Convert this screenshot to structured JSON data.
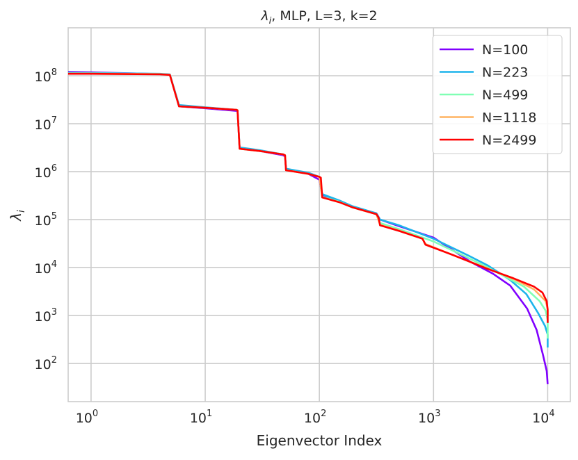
{
  "chart_data": {
    "type": "line",
    "title": "λ_i, MLP, L=3, k=2",
    "title_parts": {
      "symbol": "λ",
      "sub": "i",
      "rest": ", MLP, L=3, k=2"
    },
    "xlabel": "Eigenvector Index",
    "ylabel": "λ_i",
    "ylabel_parts": {
      "symbol": "λ",
      "sub": "i"
    },
    "xscale": "log",
    "yscale": "log",
    "xlim": [
      0.63,
      15800
    ],
    "ylim": [
      16,
      1000000000
    ],
    "grid": true,
    "legend_position": "top-right",
    "x_ticks": [
      {
        "base": "10",
        "exp": "0",
        "value": 1
      },
      {
        "base": "10",
        "exp": "1",
        "value": 10
      },
      {
        "base": "10",
        "exp": "2",
        "value": 100
      },
      {
        "base": "10",
        "exp": "3",
        "value": 1000
      },
      {
        "base": "10",
        "exp": "4",
        "value": 10000
      }
    ],
    "y_ticks": [
      {
        "base": "10",
        "exp": "2",
        "value": 100
      },
      {
        "base": "10",
        "exp": "3",
        "value": 1000
      },
      {
        "base": "10",
        "exp": "4",
        "value": 10000
      },
      {
        "base": "10",
        "exp": "5",
        "value": 100000
      },
      {
        "base": "10",
        "exp": "6",
        "value": 1000000
      },
      {
        "base": "10",
        "exp": "7",
        "value": 10000000
      },
      {
        "base": "10",
        "exp": "8",
        "value": 100000000
      }
    ],
    "series": [
      {
        "name": "N=100",
        "color": "#8000ff",
        "points": [
          [
            0.63,
            120000000.0
          ],
          [
            1,
            118000000.0
          ],
          [
            4,
            108000000.0
          ],
          [
            4.9,
            105000000.0
          ],
          [
            5.9,
            23000000.0
          ],
          [
            10,
            21000000.0
          ],
          [
            18.8,
            18500000.0
          ],
          [
            19.2,
            18500000.0
          ],
          [
            20,
            3100000.0
          ],
          [
            30,
            2700000.0
          ],
          [
            48,
            2200000.0
          ],
          [
            50,
            2100000.0
          ],
          [
            51,
            1120000.0
          ],
          [
            80,
            900000.0
          ],
          [
            100,
            680000.0
          ],
          [
            106,
            330000.0
          ],
          [
            150,
            240000.0
          ],
          [
            195,
            180000.0
          ],
          [
            316,
            135000.0
          ],
          [
            340,
            100000.0
          ],
          [
            500,
            73000.0
          ],
          [
            1000,
            42000.0
          ],
          [
            2130,
            13000.0
          ],
          [
            3300,
            7500.0
          ],
          [
            4700,
            4200.0
          ],
          [
            6600,
            1400.0
          ],
          [
            8000,
            500
          ],
          [
            9100,
            150
          ],
          [
            9800,
            70
          ],
          [
            10000,
            37
          ]
        ]
      },
      {
        "name": "N=223",
        "color": "#1cb4eb",
        "points": [
          [
            0.63,
            115000000.0
          ],
          [
            1,
            114000000.0
          ],
          [
            4,
            110000000.0
          ],
          [
            4.9,
            107000000.0
          ],
          [
            5.9,
            24500000.0
          ],
          [
            10,
            22000000.0
          ],
          [
            18.8,
            19500000.0
          ],
          [
            19.2,
            19000000.0
          ],
          [
            20,
            3200000.0
          ],
          [
            30,
            2800000.0
          ],
          [
            48,
            2300000.0
          ],
          [
            50,
            2200000.0
          ],
          [
            51,
            1150000.0
          ],
          [
            80,
            950000.0
          ],
          [
            100,
            780000.0
          ],
          [
            106,
            340000.0
          ],
          [
            150,
            250000.0
          ],
          [
            195,
            190000.0
          ],
          [
            316,
            135000.0
          ],
          [
            340,
            100000.0
          ],
          [
            500,
            76000.0
          ],
          [
            1000,
            40000.0
          ],
          [
            2000,
            18000.0
          ],
          [
            3000,
            11000.0
          ],
          [
            4700,
            5500.0
          ],
          [
            6500,
            2800.0
          ],
          [
            8200,
            1150.0
          ],
          [
            9500,
            600
          ],
          [
            10000,
            400
          ],
          [
            10000,
            215
          ]
        ]
      },
      {
        "name": "N=499",
        "color": "#80ffb4",
        "points": [
          [
            0.63,
            112000000.0
          ],
          [
            1,
            112000000.0
          ],
          [
            4,
            108000000.0
          ],
          [
            4.9,
            105000000.0
          ],
          [
            5.9,
            23000000.0
          ],
          [
            10,
            21500000.0
          ],
          [
            18.8,
            19500000.0
          ],
          [
            19.2,
            19000000.0
          ],
          [
            20,
            3000000.0
          ],
          [
            30,
            2700000.0
          ],
          [
            48,
            2300000.0
          ],
          [
            50,
            2200000.0
          ],
          [
            51,
            1080000.0
          ],
          [
            80,
            900000.0
          ],
          [
            100,
            780000.0
          ],
          [
            106,
            300000.0
          ],
          [
            150,
            235000.0
          ],
          [
            195,
            180000.0
          ],
          [
            316,
            130000.0
          ],
          [
            340,
            85000.0
          ],
          [
            500,
            63000.0
          ],
          [
            1000,
            35000.0
          ],
          [
            2000,
            16000.0
          ],
          [
            3000,
            10000.0
          ],
          [
            6200,
            4000.0
          ],
          [
            8500,
            2000.0
          ],
          [
            9600,
            1260.0
          ],
          [
            10000,
            800
          ],
          [
            10000,
            330
          ]
        ]
      },
      {
        "name": "N=1118",
        "color": "#ffb360",
        "points": [
          [
            0.63,
            110000000.0
          ],
          [
            1,
            110000000.0
          ],
          [
            4,
            108000000.0
          ],
          [
            4.9,
            105000000.0
          ],
          [
            5.9,
            23000000.0
          ],
          [
            10,
            21500000.0
          ],
          [
            18.8,
            19500000.0
          ],
          [
            19.2,
            19000000.0
          ],
          [
            20,
            3000000.0
          ],
          [
            30,
            2700000.0
          ],
          [
            48,
            2300000.0
          ],
          [
            50,
            2200000.0
          ],
          [
            51,
            1070000.0
          ],
          [
            80,
            900000.0
          ],
          [
            100,
            780000.0
          ],
          [
            106,
            290000.0
          ],
          [
            150,
            230000.0
          ],
          [
            195,
            180000.0
          ],
          [
            316,
            130000.0
          ],
          [
            340,
            78000.0
          ],
          [
            500,
            59000.0
          ],
          [
            800,
            40000.0
          ],
          [
            850,
            31000.0
          ],
          [
            1500,
            18000.0
          ],
          [
            3000,
            9500.0
          ],
          [
            5000,
            5800.0
          ],
          [
            7600,
            3500.0
          ],
          [
            9600,
            2000.0
          ],
          [
            10000,
            1400.0
          ],
          [
            10000,
            1000.0
          ]
        ]
      },
      {
        "name": "N=2499",
        "color": "#ff0000",
        "points": [
          [
            0.63,
            110000000.0
          ],
          [
            1,
            110000000.0
          ],
          [
            4,
            107000000.0
          ],
          [
            4.9,
            104000000.0
          ],
          [
            5.9,
            23000000.0
          ],
          [
            10,
            21500000.0
          ],
          [
            18.8,
            19500000.0
          ],
          [
            19.2,
            19000000.0
          ],
          [
            20,
            3000000.0
          ],
          [
            30,
            2700000.0
          ],
          [
            48,
            2300000.0
          ],
          [
            50,
            2200000.0
          ],
          [
            51,
            1070000.0
          ],
          [
            80,
            900000.0
          ],
          [
            100,
            780000.0
          ],
          [
            103,
            750000.0
          ],
          [
            106,
            290000.0
          ],
          [
            150,
            230000.0
          ],
          [
            195,
            180000.0
          ],
          [
            316,
            130000.0
          ],
          [
            330,
            110000.0
          ],
          [
            340,
            76000.0
          ],
          [
            500,
            58000.0
          ],
          [
            800,
            40000.0
          ],
          [
            850,
            30000.0
          ],
          [
            1500,
            18000.0
          ],
          [
            3000,
            9300.0
          ],
          [
            5000,
            6000.0
          ],
          [
            7600,
            4000.0
          ],
          [
            9000,
            3000.0
          ],
          [
            9800,
            2000.0
          ],
          [
            10000,
            1300.0
          ],
          [
            10000,
            700
          ]
        ]
      }
    ]
  }
}
